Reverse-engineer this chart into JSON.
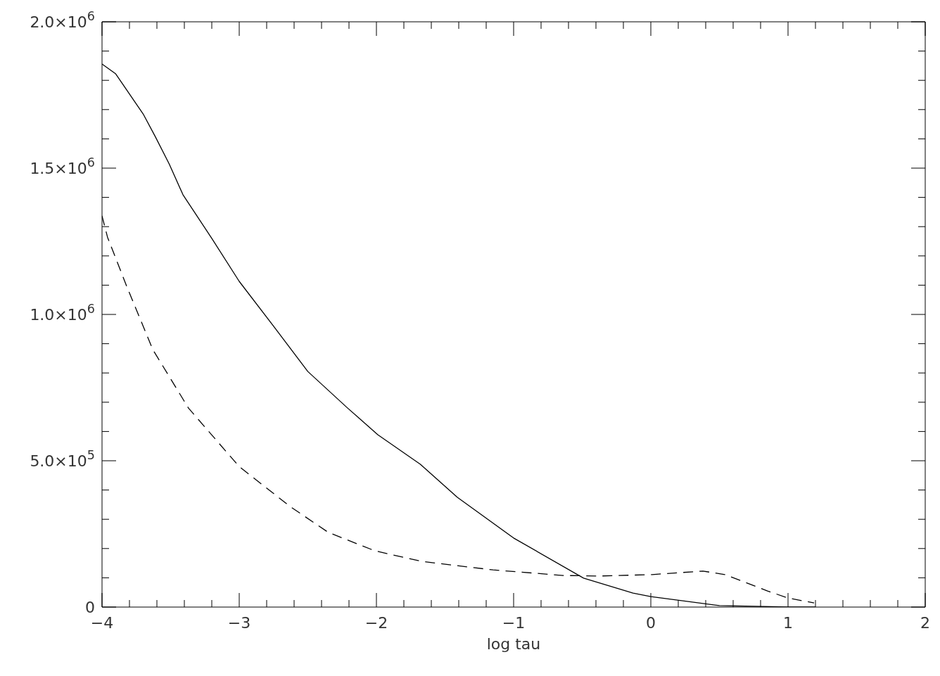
{
  "chart_data": {
    "type": "line",
    "xlabel": "log tau",
    "xlim": [
      -4,
      2
    ],
    "xticks": [
      -4,
      {
        "value": -3.8,
        "label": null
      },
      {
        "value": -3.6,
        "label": null
      },
      {
        "value": -3.4,
        "label": null
      },
      {
        "value": -3.2,
        "label": null
      },
      -3,
      {
        "value": -2.8,
        "label": null
      },
      {
        "value": -2.6,
        "label": null
      },
      {
        "value": -2.4,
        "label": null
      },
      {
        "value": -2.2,
        "label": null
      },
      -2,
      {
        "value": -1.8,
        "label": null
      },
      {
        "value": -1.6,
        "label": null
      },
      {
        "value": -1.4,
        "label": null
      },
      {
        "value": -1.2,
        "label": null
      },
      -1,
      {
        "value": -0.8,
        "label": null
      },
      {
        "value": -0.6,
        "label": null
      },
      {
        "value": -0.4,
        "label": null
      },
      {
        "value": -0.2,
        "label": null
      },
      0,
      {
        "value": 0.2,
        "label": null
      },
      {
        "value": 0.4,
        "label": null
      },
      {
        "value": 0.6,
        "label": null
      },
      {
        "value": 0.8,
        "label": null
      },
      1,
      {
        "value": 1.2,
        "label": null
      },
      {
        "value": 1.4,
        "label": null
      },
      {
        "value": 1.6,
        "label": null
      },
      {
        "value": 1.8,
        "label": null
      },
      2
    ],
    "ylim": [
      0,
      2000000
    ],
    "yticks": [
      0,
      {
        "value": 100000,
        "label": null
      },
      {
        "value": 200000,
        "label": null
      },
      {
        "value": 300000,
        "label": null
      },
      {
        "value": 400000,
        "label": null
      },
      {
        "value": 500000,
        "label": "5.0×10$^{5}$"
      },
      {
        "value": 600000,
        "label": null
      },
      {
        "value": 700000,
        "label": null
      },
      {
        "value": 800000,
        "label": null
      },
      {
        "value": 900000,
        "label": null
      },
      {
        "value": 1000000,
        "label": "1.0×10$^{6}$"
      },
      {
        "value": 1100000,
        "label": null
      },
      {
        "value": 1200000,
        "label": null
      },
      {
        "value": 1300000,
        "label": null
      },
      {
        "value": 1400000,
        "label": null
      },
      {
        "value": 1500000,
        "label": "1.5×10$^{6}$"
      },
      {
        "value": 1600000,
        "label": null
      },
      {
        "value": 1700000,
        "label": null
      },
      {
        "value": 1800000,
        "label": null
      },
      {
        "value": 1900000,
        "label": null
      },
      {
        "value": 2000000,
        "label": "2.0×10$^{6}$"
      }
    ],
    "marker": "none",
    "series": [
      {
        "color": "#000000",
        "line_style": "solid",
        "x": [
          -4,
          -3.9,
          -3.7,
          -3.61,
          -3.51,
          -3.41,
          -3.2,
          -3,
          -2.75,
          -2.5,
          -2.21,
          -1.99,
          -1.68,
          -1.41,
          -1,
          -0.49,
          -0.13,
          0,
          0.5,
          1,
          1.2
        ],
        "values": [
          1856000,
          1822000,
          1685000,
          1606000,
          1514000,
          1409000,
          1260000,
          1113000,
          960000,
          805000,
          680000,
          589000,
          488000,
          375000,
          236000,
          99000,
          48000,
          36000,
          5000,
          0,
          0
        ]
      },
      {
        "color": "#000000",
        "line_style": "dashed",
        "x": [
          -4,
          -3.96,
          -3.82,
          -3.63,
          -3.37,
          -3,
          -2.63,
          -2.35,
          -2.01,
          -1.67,
          -1.15,
          -0.64,
          -0.38,
          0.01,
          0.38,
          0.54,
          0.69,
          0.85,
          1,
          1.19
        ],
        "values": [
          1337000,
          1264000,
          1096000,
          880000,
          680000,
          480000,
          344000,
          255000,
          192000,
          156000,
          127000,
          108000,
          106000,
          111000,
          123000,
          111000,
          84000,
          55000,
          31000,
          14000
        ]
      }
    ]
  }
}
